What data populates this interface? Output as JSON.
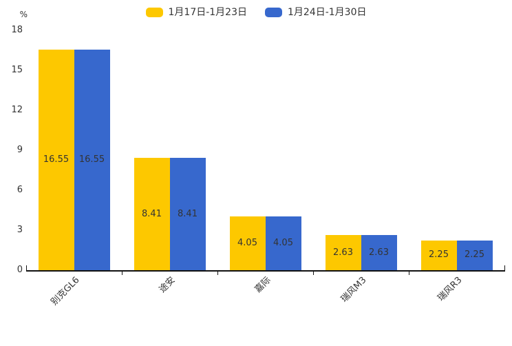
{
  "chart_data": {
    "type": "bar",
    "title": "",
    "categories": [
      "别克GL6",
      "途安",
      "嘉际",
      "瑞风M3",
      "瑞风R3"
    ],
    "series": [
      {
        "name": "1月17日-1月23日",
        "color": "#FDC800",
        "values": [
          16.55,
          8.41,
          4.05,
          2.63,
          2.25
        ]
      },
      {
        "name": "1月24日-1月30日",
        "color": "#3768CD",
        "values": [
          16.55,
          8.41,
          4.05,
          2.63,
          2.25
        ]
      }
    ],
    "xlabel": "",
    "ylabel": "%",
    "ylim": [
      0,
      18
    ],
    "yticks": [
      0,
      3,
      6,
      9,
      12,
      15,
      18
    ],
    "grid": false,
    "legend_position": "top-center",
    "value_label_format": "0.00",
    "text_color": "#333333",
    "axis_color": "#111111"
  }
}
